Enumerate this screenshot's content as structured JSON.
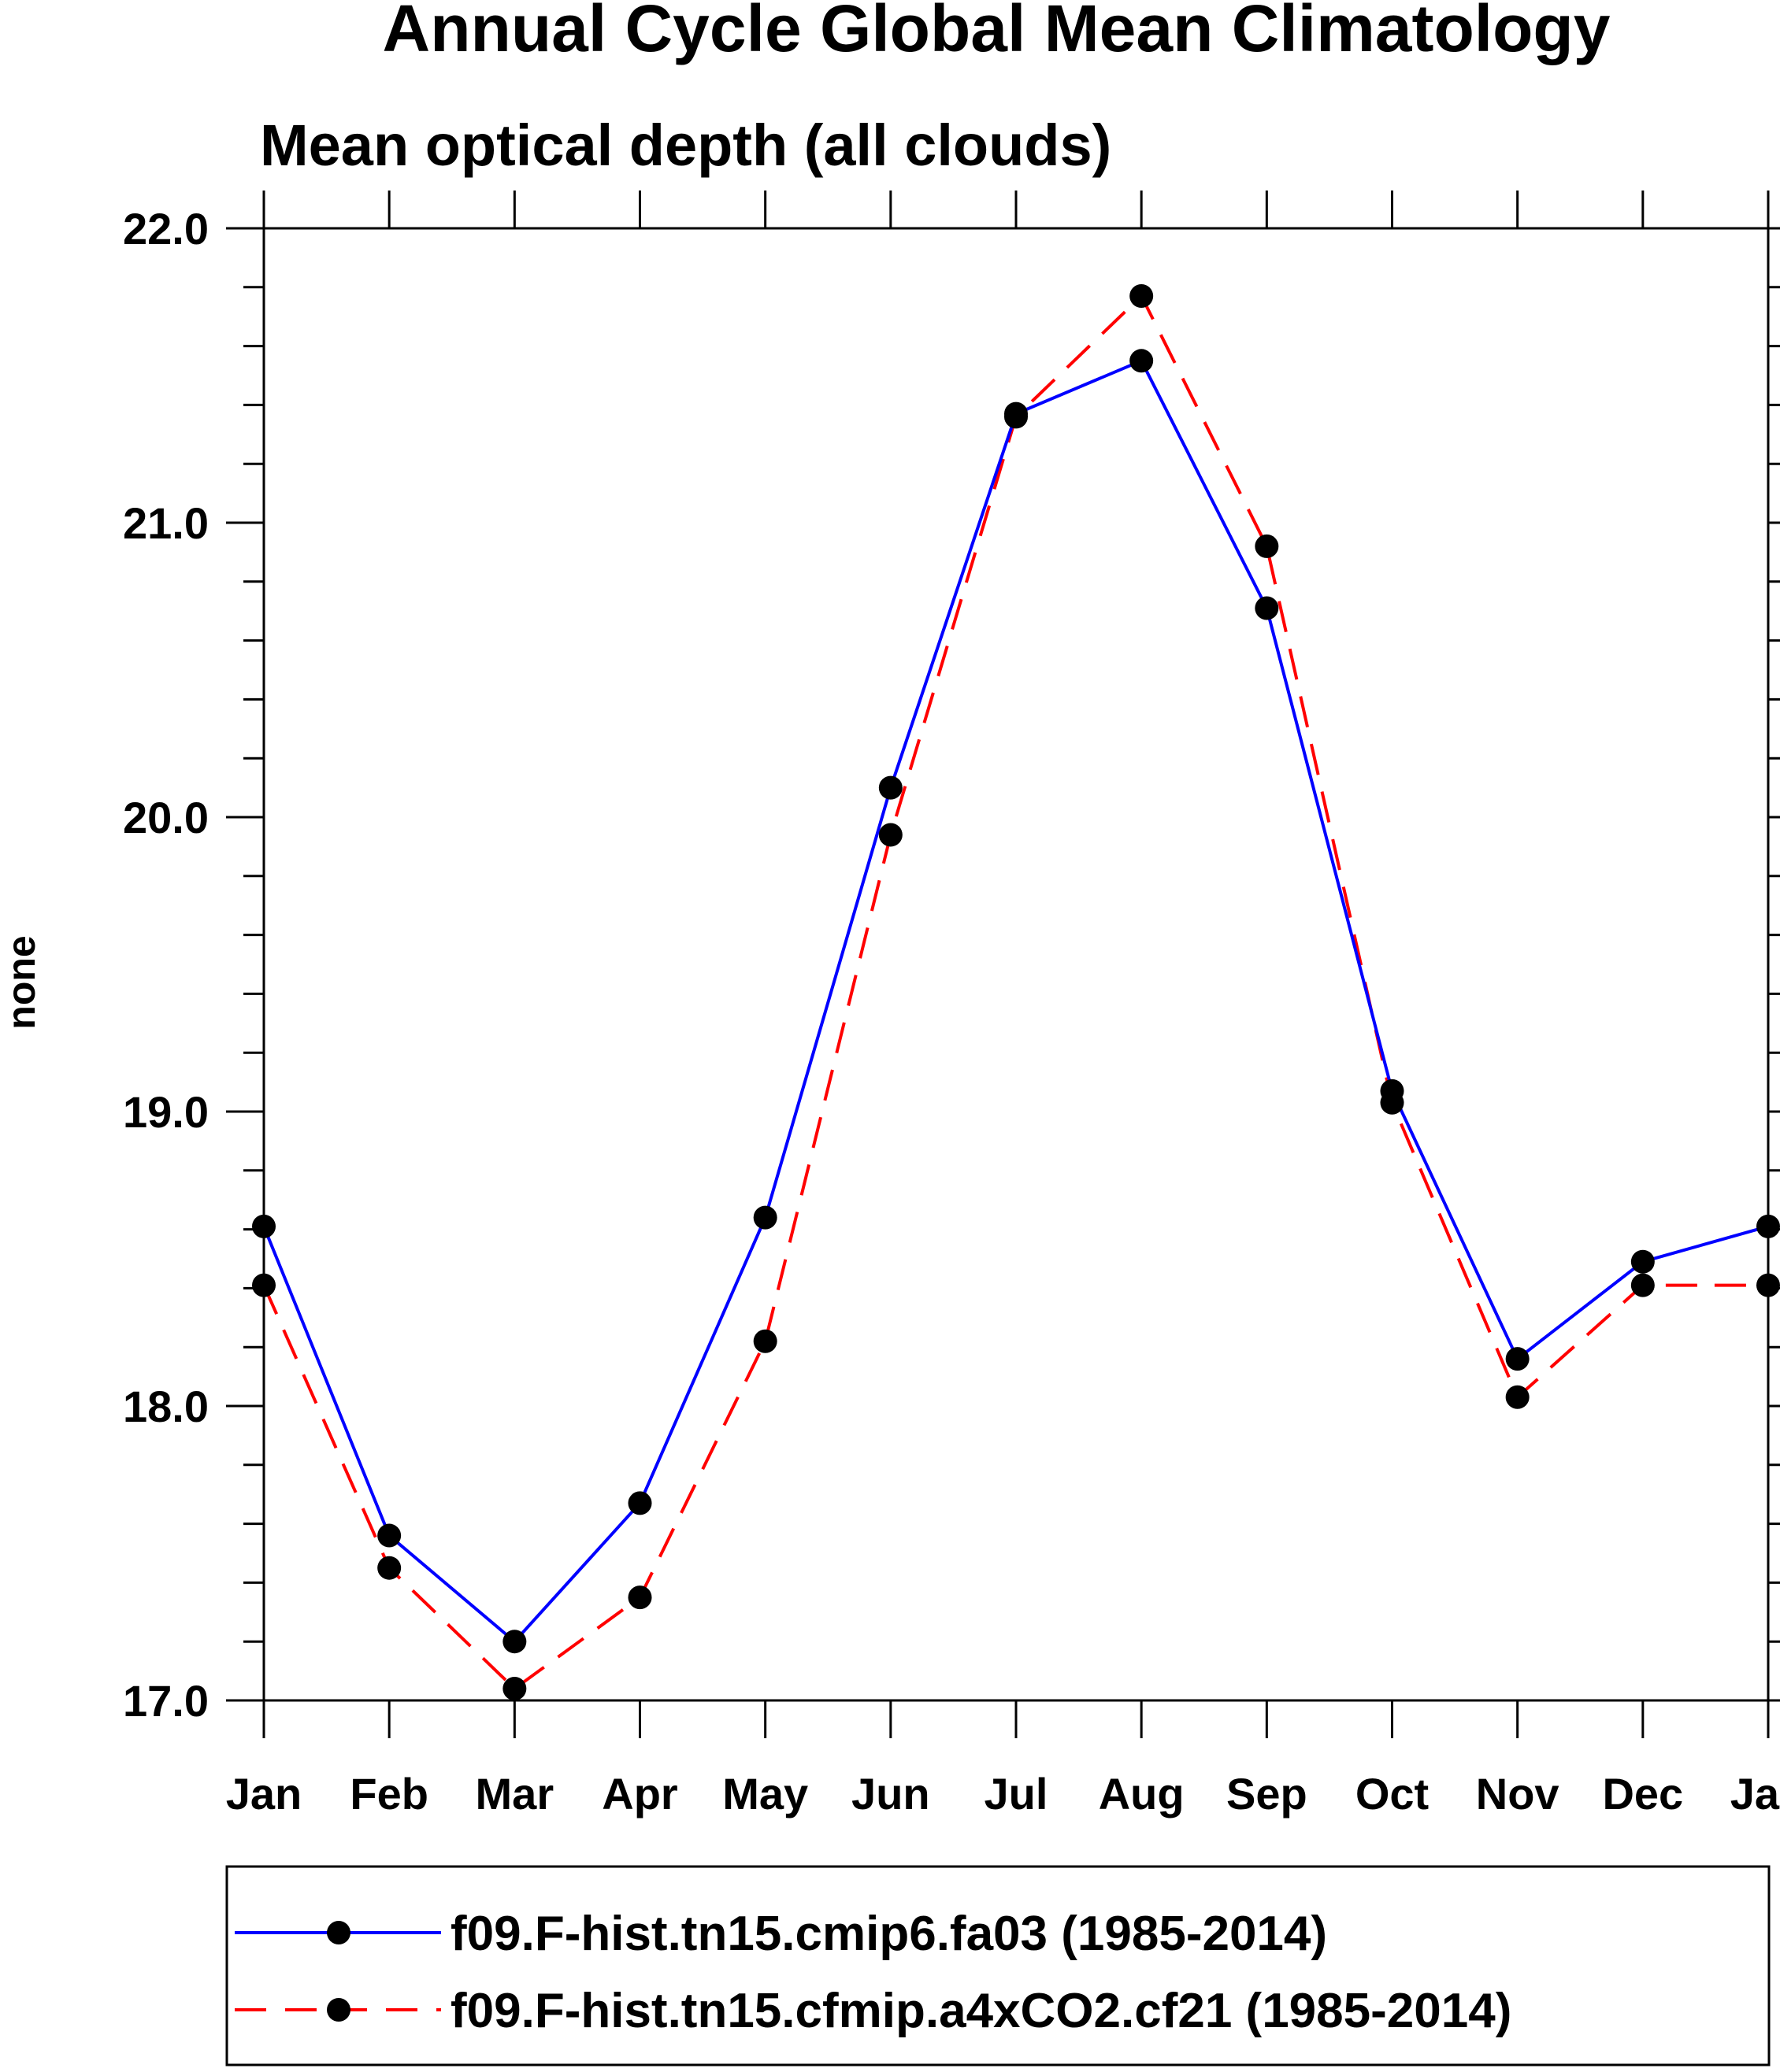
{
  "chart_data": {
    "type": "line",
    "title": "Annual Cycle Global Mean Climatology",
    "subtitle": "Mean optical depth (all clouds)",
    "xlabel": "",
    "ylabel": "none",
    "categories": [
      "Jan",
      "Feb",
      "Mar",
      "Apr",
      "May",
      "Jun",
      "Jul",
      "Aug",
      "Sep",
      "Oct",
      "Nov",
      "Dec",
      "Jan"
    ],
    "ylim": [
      17.0,
      22.0
    ],
    "yticks": [
      "17.0",
      "18.0",
      "19.0",
      "20.0",
      "21.0",
      "22.0"
    ],
    "y_minor_step": 0.2,
    "grid": false,
    "legend_position": "bottom",
    "series": [
      {
        "name": "f09.F-hist.tn15.cmip6.fa03 (1985-2014)",
        "color": "#0000ff",
        "line_style": "solid",
        "marker": "filled-circle",
        "values": [
          18.61,
          17.56,
          17.2,
          17.67,
          18.64,
          20.1,
          21.37,
          21.55,
          20.71,
          19.07,
          18.16,
          18.49,
          18.61
        ]
      },
      {
        "name": "f09.F-hist.tn15.cfmip.a4xCO2.cf21 (1985-2014)",
        "color": "#ff0000",
        "line_style": "dashed",
        "marker": "filled-circle",
        "values": [
          18.41,
          17.45,
          17.04,
          17.35,
          18.22,
          19.94,
          21.36,
          21.77,
          20.92,
          19.03,
          18.03,
          18.41,
          18.41
        ]
      }
    ]
  }
}
